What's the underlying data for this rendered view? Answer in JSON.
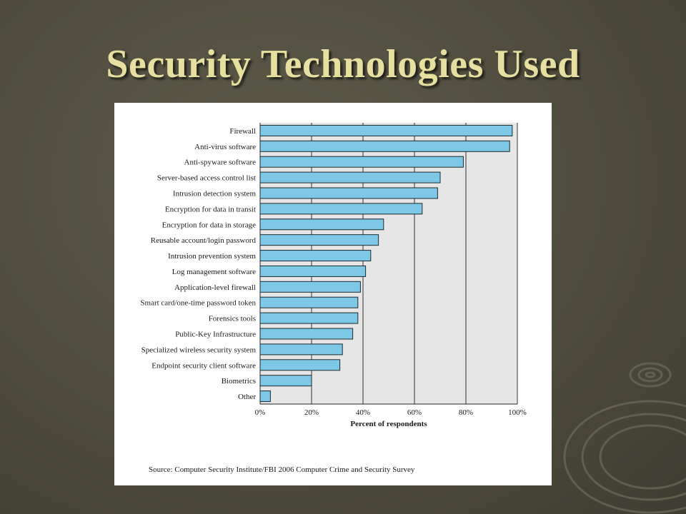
{
  "slide": {
    "title": "Security Technologies Used"
  },
  "chart_data": {
    "type": "bar",
    "orientation": "horizontal",
    "categories": [
      "Firewall",
      "Anti-virus software",
      "Anti-spyware software",
      "Server-based access control list",
      "Intrusion detection system",
      "Encryption for data in transit",
      "Encryption for data in storage",
      "Reusable account/login password",
      "Intrusion prevention system",
      "Log management software",
      "Application-level firewall",
      "Smart card/one-time password token",
      "Forensics tools",
      "Public-Key Infrastructure",
      "Specialized wireless security system",
      "Endpoint security client software",
      "Biometrics",
      "Other"
    ],
    "values": [
      98,
      97,
      79,
      70,
      69,
      63,
      48,
      46,
      43,
      41,
      39,
      38,
      38,
      36,
      32,
      31,
      20,
      4
    ],
    "xlabel": "Percent of respondents",
    "xlim": [
      0,
      100
    ],
    "xticks": [
      "0%",
      "20%",
      "40%",
      "60%",
      "80%",
      "100%"
    ],
    "grid": "vertical",
    "bar_color": "#7cc8e6",
    "plot_background": "#e6e6e6",
    "source": "Source: Computer Security Institute/FBI 2006 Computer Crime and Security Survey"
  }
}
